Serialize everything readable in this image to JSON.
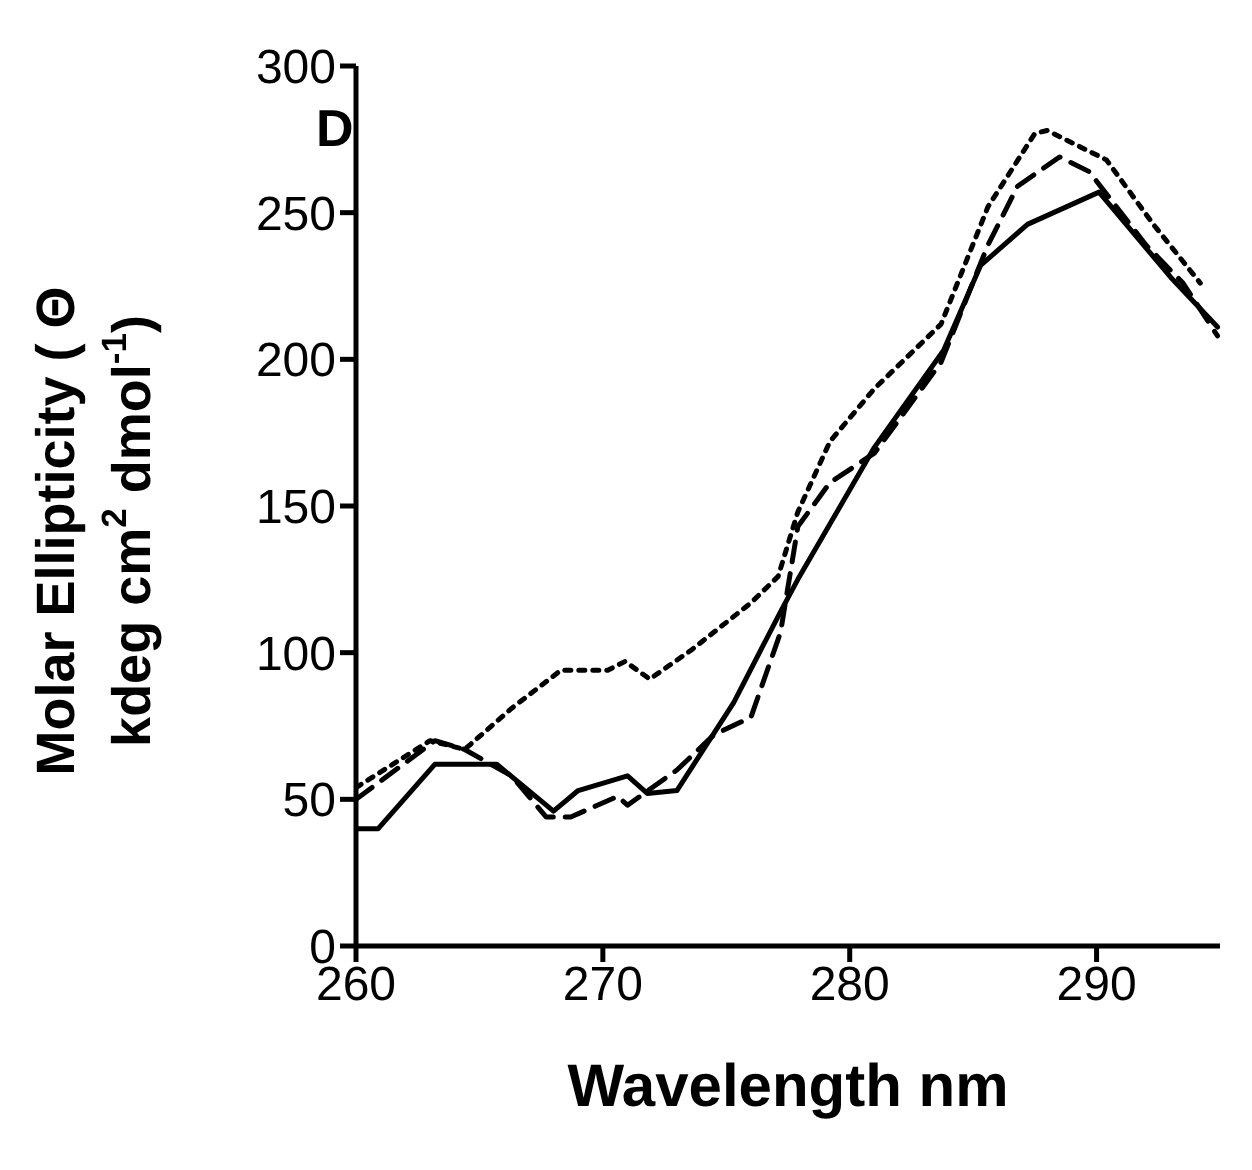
{
  "chart_data": {
    "type": "line",
    "xlabel": "Wavelength  nm",
    "ylabel": [
      "Molar Ellipticity ( Θ",
      "kdeg cm$^{2}$ dmol$^{-1}$)"
    ],
    "annotations": [
      "D"
    ],
    "xlim": [
      260,
      295
    ],
    "xticks": [
      260,
      270,
      280,
      290
    ],
    "ylim": [
      0,
      300
    ],
    "yticks": [
      0,
      50,
      100,
      150,
      200,
      250,
      300
    ],
    "grid": false,
    "legend": false,
    "marker": "none",
    "series": [
      {
        "color": "#000000",
        "line_style": "solid",
        "x": [
          260,
          260.9,
          263.2,
          265.7,
          268,
          269,
          271,
          271.8,
          273,
          275.3,
          277.2,
          277.9,
          281,
          283.8,
          285.3,
          287.2,
          290.1,
          293,
          294.9
        ],
        "values": [
          40,
          40,
          62,
          62,
          46,
          53,
          58,
          52,
          53,
          83,
          114,
          125,
          170,
          203,
          232,
          246,
          257,
          228,
          211
        ]
      },
      {
        "color": "#000000",
        "line_style": "dashed",
        "x": [
          260,
          263.2,
          264.4,
          266.3,
          267.7,
          268.7,
          270.6,
          271,
          273,
          274.5,
          276,
          277.2,
          277.9,
          279.2,
          281,
          283.7,
          285.6,
          286.8,
          288.5,
          289.7,
          292,
          293.5,
          294.9
        ],
        "values": [
          50,
          70,
          67,
          58,
          44,
          44,
          51,
          48,
          60,
          72,
          78,
          107,
          143,
          158,
          168,
          199,
          239,
          259,
          269,
          264,
          239,
          226,
          208
        ]
      },
      {
        "color": "#000000",
        "line_style": "dotted",
        "x": [
          260,
          261.5,
          263,
          264.4,
          266.3,
          268.3,
          270.2,
          270.9,
          271.9,
          273.6,
          276,
          277.1,
          277.9,
          279.2,
          281,
          283.7,
          285.6,
          287.5,
          288,
          290.4,
          292.3,
          294.2
        ],
        "values": [
          54,
          62,
          70,
          67,
          81,
          94,
          94,
          97,
          91,
          101,
          117,
          126,
          148,
          172,
          190,
          212,
          252,
          277,
          278,
          268,
          246,
          226
        ]
      }
    ]
  }
}
